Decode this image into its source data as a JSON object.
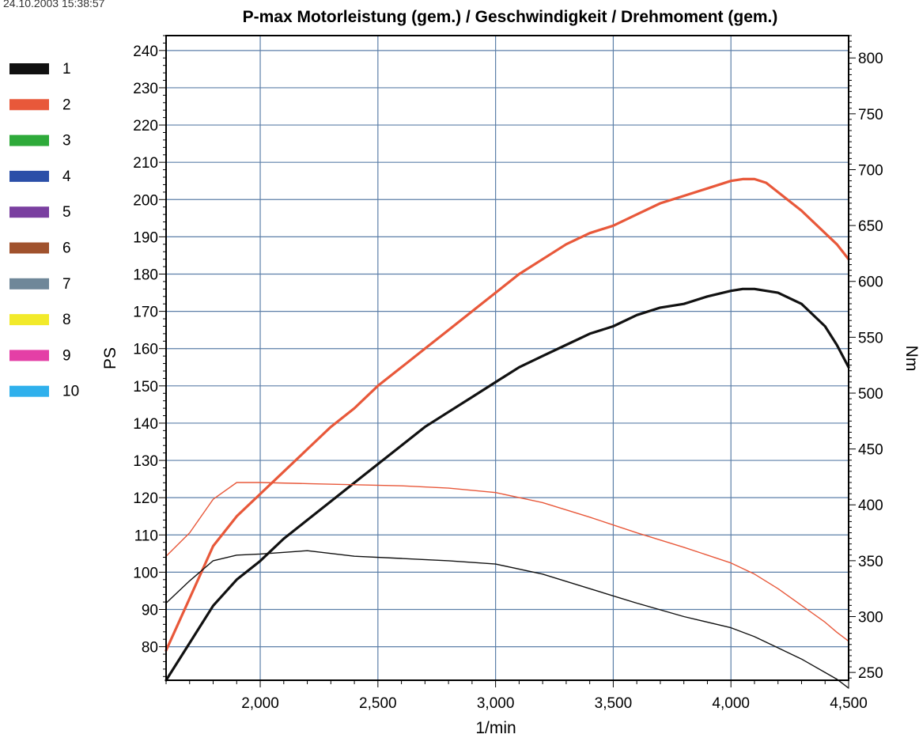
{
  "header": {
    "timestamp": "24.10.2003 15:38:57"
  },
  "chart_data": {
    "type": "line",
    "title": "P-max Motorleistung (gem.) / Geschwindigkeit / Drehmoment (gem.)",
    "xlabel": "1/min",
    "ylabel_left": "PS",
    "ylabel_right": "Nm",
    "xlim": [
      1600,
      4500
    ],
    "ylim_left": [
      71,
      244
    ],
    "ylim_right": [
      243,
      820
    ],
    "grid": true,
    "x_ticks": [
      2000,
      2500,
      3000,
      3500,
      4000,
      4500
    ],
    "x_tick_labels": [
      "2,000",
      "2,500",
      "3,000",
      "3,500",
      "4,000",
      "4,500"
    ],
    "y_left_ticks": [
      80,
      90,
      100,
      110,
      120,
      130,
      140,
      150,
      160,
      170,
      180,
      190,
      200,
      210,
      220,
      230,
      240
    ],
    "y_right_ticks": [
      250,
      300,
      350,
      400,
      450,
      500,
      550,
      600,
      650,
      700,
      750,
      800
    ],
    "legend": {
      "placement": "left",
      "entries": [
        {
          "label": "1",
          "color": "#111111"
        },
        {
          "label": "2",
          "color": "#e8583a"
        },
        {
          "label": "3",
          "color": "#2eaa3a"
        },
        {
          "label": "4",
          "color": "#2b4fa8"
        },
        {
          "label": "5",
          "color": "#7a3fa0"
        },
        {
          "label": "6",
          "color": "#a0522d"
        },
        {
          "label": "7",
          "color": "#6f8799"
        },
        {
          "label": "8",
          "color": "#f2ea2a"
        },
        {
          "label": "9",
          "color": "#e43fa6"
        },
        {
          "label": "10",
          "color": "#2fb0ec"
        }
      ]
    },
    "series": [
      {
        "name": "2",
        "axis": "left",
        "color": "#e8583a",
        "weight": "thick",
        "x": [
          1600,
          1700,
          1800,
          1900,
          2000,
          2100,
          2200,
          2300,
          2400,
          2500,
          2600,
          2700,
          2800,
          2900,
          3000,
          3100,
          3200,
          3300,
          3400,
          3500,
          3600,
          3700,
          3800,
          3900,
          4000,
          4050,
          4100,
          4150,
          4200,
          4300,
          4400,
          4450,
          4500
        ],
        "y": [
          79,
          93,
          107,
          115,
          121,
          127,
          133,
          139,
          144,
          150,
          155,
          160,
          165,
          170,
          175,
          180,
          184,
          188,
          191,
          193,
          196,
          199,
          201,
          203,
          205,
          205.5,
          205.5,
          204.5,
          202,
          197,
          191,
          188,
          184
        ]
      },
      {
        "name": "1",
        "axis": "left",
        "color": "#111111",
        "weight": "thick",
        "x": [
          1600,
          1700,
          1800,
          1900,
          2000,
          2100,
          2200,
          2300,
          2400,
          2500,
          2600,
          2700,
          2800,
          2900,
          3000,
          3100,
          3200,
          3300,
          3400,
          3500,
          3600,
          3700,
          3800,
          3900,
          4000,
          4050,
          4100,
          4150,
          4200,
          4300,
          4400,
          4450,
          4500
        ],
        "y": [
          71,
          81,
          91,
          98,
          103,
          109,
          114,
          119,
          124,
          129,
          134,
          139,
          143,
          147,
          151,
          155,
          158,
          161,
          164,
          166,
          169,
          171,
          172,
          174,
          175.5,
          176,
          176,
          175.5,
          175,
          172,
          166,
          161,
          155
        ]
      },
      {
        "name": "2",
        "axis": "right",
        "color": "#e8583a",
        "weight": "thin",
        "x": [
          1600,
          1700,
          1800,
          1900,
          2000,
          2200,
          2400,
          2600,
          2800,
          3000,
          3200,
          3400,
          3600,
          3800,
          4000,
          4100,
          4200,
          4300,
          4400,
          4450,
          4500
        ],
        "y": [
          354,
          375,
          405,
          420,
          420,
          419,
          418,
          417,
          415,
          411,
          402,
          389,
          375,
          362,
          348,
          338,
          325,
          310,
          295,
          286,
          278
        ]
      },
      {
        "name": "1",
        "axis": "right",
        "color": "#111111",
        "weight": "thin",
        "x": [
          1600,
          1700,
          1800,
          1900,
          2000,
          2200,
          2400,
          2600,
          2800,
          3000,
          3200,
          3400,
          3600,
          3800,
          4000,
          4100,
          4200,
          4300,
          4400,
          4450,
          4500
        ],
        "y": [
          312,
          332,
          350,
          355,
          356,
          359,
          354,
          352,
          350,
          347,
          338,
          325,
          312,
          300,
          290,
          282,
          272,
          262,
          250,
          244,
          236
        ]
      }
    ]
  }
}
